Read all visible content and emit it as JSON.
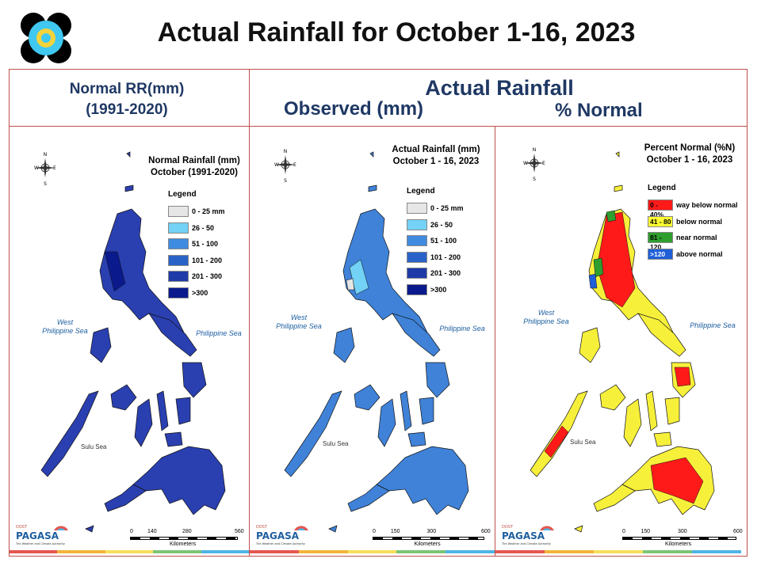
{
  "title": "Actual Rainfall for October 1-16, 2023",
  "headers": {
    "normal_line1": "Normal RR(mm)",
    "normal_line2": "(1991-2020)",
    "actual": "Actual Rainfall",
    "observed": "Observed (mm)",
    "percent": "% Normal"
  },
  "panels": [
    {
      "id": "normal",
      "title_line1": "Normal Rainfall (mm)",
      "title_line2": "October (1991-2020)",
      "legend_title": "Legend",
      "legend": [
        {
          "label": "0 - 25 mm",
          "color": "#e6e6e6"
        },
        {
          "label": "26 - 50",
          "color": "#73d2f5"
        },
        {
          "label": "51 - 100",
          "color": "#3f8be0"
        },
        {
          "label": "101 - 200",
          "color": "#2a63c8"
        },
        {
          "label": "201 - 300",
          "color": "#1e3ba8"
        },
        {
          "label": ">300",
          "color": "#0a1a8c"
        }
      ],
      "fill": "#2a3fb0",
      "scale_labels": [
        "0",
        "140",
        "280",
        "560"
      ],
      "scale_unit": "Kilometers"
    },
    {
      "id": "observed",
      "title_line1": "Actual Rainfall (mm)",
      "title_line2": "October 1 - 16, 2023",
      "legend_title": "Legend",
      "legend": [
        {
          "label": "0 - 25 mm",
          "color": "#e6e6e6"
        },
        {
          "label": "26 - 50",
          "color": "#73d2f5"
        },
        {
          "label": "51 - 100",
          "color": "#3f8be0"
        },
        {
          "label": "101 - 200",
          "color": "#2a63c8"
        },
        {
          "label": "201 - 300",
          "color": "#1e3ba8"
        },
        {
          "label": ">300",
          "color": "#0a1a8c"
        }
      ],
      "fill": "#3f82d8",
      "scale_labels": [
        "0",
        "150",
        "300",
        "600"
      ],
      "scale_unit": "Kilometers"
    },
    {
      "id": "percent",
      "title_line1": "Percent Normal (%N)",
      "title_line2": "October 1 - 16, 2023",
      "legend_title": "Legend",
      "legend": [
        {
          "swatch": "0 - 40%",
          "label": "way below normal",
          "color": "#ff1a1a"
        },
        {
          "swatch": "41 - 80",
          "label": "below normal",
          "color": "#ffff33"
        },
        {
          "swatch": "81 - 120",
          "label": "near normal",
          "color": "#2e9e2e"
        },
        {
          "swatch": ">120",
          "label": "above normal",
          "color": "#1f5fd8"
        }
      ],
      "fill": "#f7f03a",
      "scale_labels": [
        "0",
        "150",
        "300",
        "600"
      ],
      "scale_unit": "Kilometers"
    }
  ],
  "sea_labels": {
    "west": "West\nPhilippine Sea",
    "east": "Philippine Sea",
    "sulu": "Sulu Sea"
  },
  "compass": {
    "n": "N",
    "s": "S",
    "e": "E",
    "w": "W"
  },
  "footer_logo": {
    "top": "DOST",
    "mid": "PAGASA",
    "sub": "The Weather and Climate Authority"
  },
  "colors": {
    "frame": "#c0504d",
    "header_text": "#1f3864",
    "footer_stripes": [
      "#e5574f",
      "#f2b53a",
      "#f7df5b",
      "#7cc576",
      "#4fb4e6"
    ]
  }
}
